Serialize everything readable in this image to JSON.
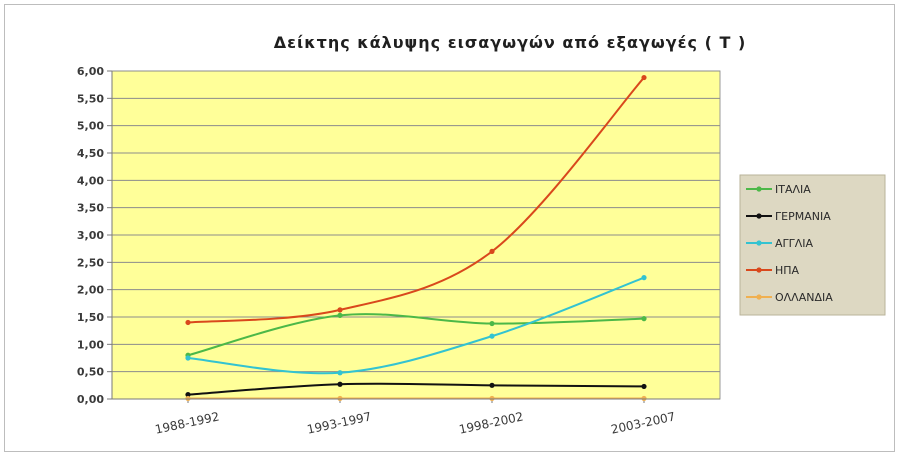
{
  "chart_data": {
    "type": "line",
    "title": "Δείκτης κάλυψης εισαγωγών από εξαγωγές ( Τ )",
    "categories": [
      "1988-1992",
      "1993-1997",
      "1998-2002",
      "2003-2007"
    ],
    "ylim": [
      0,
      6
    ],
    "yticks": [
      "0,00",
      "0,50",
      "1,00",
      "1,50",
      "2,00",
      "2,50",
      "3,00",
      "3,50",
      "4,00",
      "4,50",
      "5,00",
      "5,50",
      "6,00"
    ],
    "grid": true,
    "legend_position": "right",
    "plot_background": "#ffff99",
    "legend_background": "#ddd8c2",
    "series": [
      {
        "name": "ΙΤΑΛΙΑ",
        "color": "#4cb848",
        "values": [
          0.8,
          1.53,
          1.38,
          1.47
        ]
      },
      {
        "name": "ΓΕΡΜΑΝΙΑ",
        "color": "#111111",
        "values": [
          0.08,
          0.27,
          0.25,
          0.23
        ]
      },
      {
        "name": "ΑΓΓΛΙΑ",
        "color": "#33c3d1",
        "values": [
          0.75,
          0.48,
          1.15,
          2.22
        ]
      },
      {
        "name": "ΗΠΑ",
        "color": "#d9481c",
        "values": [
          1.4,
          1.63,
          2.7,
          5.88
        ]
      },
      {
        "name": "ΟΛΛΑΝΔΙΑ",
        "color": "#f0b050",
        "values": [
          0.01,
          0.01,
          0.01,
          0.01
        ]
      }
    ]
  }
}
